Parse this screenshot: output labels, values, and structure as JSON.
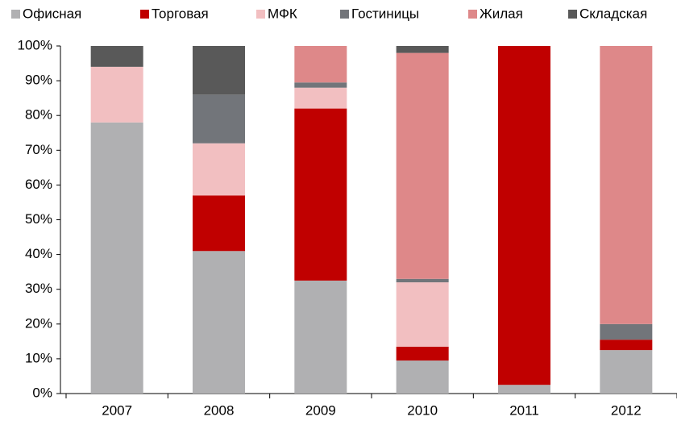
{
  "chart_data": {
    "type": "stacked_bar",
    "categories": [
      "2007",
      "2008",
      "2009",
      "2010",
      "2011",
      "2012"
    ],
    "series": [
      {
        "name": "Офисная",
        "color": "#b0b0b2",
        "values": [
          78,
          41,
          32.5,
          9.5,
          2.5,
          12.5
        ]
      },
      {
        "name": "Торговая",
        "color": "#c00000",
        "values": [
          0,
          16,
          49.5,
          4,
          97.5,
          3
        ]
      },
      {
        "name": "МФК",
        "color": "#f2bfc1",
        "values": [
          16,
          15,
          6,
          18.5,
          0,
          0
        ]
      },
      {
        "name": "Гостиницы",
        "color": "#72757a",
        "values": [
          0,
          14,
          1.5,
          1,
          0,
          4.5
        ]
      },
      {
        "name": "Жилая",
        "color": "#de8889",
        "values": [
          0,
          0,
          10.5,
          65,
          0,
          80
        ]
      },
      {
        "name": "Складская",
        "color": "#595959",
        "values": [
          6,
          14,
          0,
          2,
          0,
          0
        ]
      }
    ],
    "ylim": [
      0,
      100
    ],
    "yticks": [
      {
        "value": 0,
        "label": "0%"
      },
      {
        "value": 10,
        "label": "10%"
      },
      {
        "value": 20,
        "label": "20%"
      },
      {
        "value": 30,
        "label": "30%"
      },
      {
        "value": 40,
        "label": "40%"
      },
      {
        "value": 50,
        "label": "50%"
      },
      {
        "value": 60,
        "label": "60%"
      },
      {
        "value": 70,
        "label": "70%"
      },
      {
        "value": 80,
        "label": "80%"
      },
      {
        "value": 90,
        "label": "90%"
      },
      {
        "value": 100,
        "label": "100%"
      }
    ],
    "legend": "top"
  }
}
